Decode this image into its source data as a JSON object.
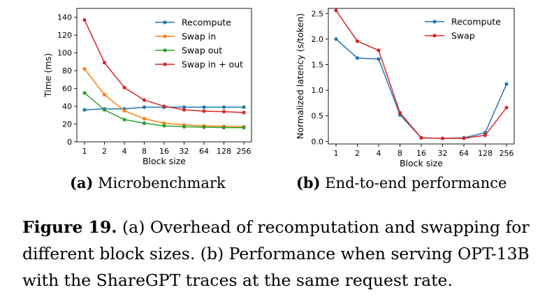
{
  "chart_data": [
    {
      "type": "line",
      "x": [
        "1",
        "2",
        "4",
        "8",
        "16",
        "32",
        "64",
        "128",
        "256"
      ],
      "xlabel": "Block size",
      "ylabel": "Time (ms)",
      "ylim": [
        0,
        150
      ],
      "yticks": [
        0,
        20,
        40,
        60,
        80,
        100,
        120,
        140
      ],
      "ytick_labels": [
        "0",
        "20",
        "40",
        "60",
        "80",
        "100",
        "120",
        "140"
      ],
      "legend_position": "top-right",
      "series": [
        {
          "name": "Recompute",
          "color": "#1f77b4",
          "values": [
            36,
            37,
            37,
            39,
            39,
            39,
            39,
            39,
            39
          ]
        },
        {
          "name": "Swap in",
          "color": "#ff7f0e",
          "values": [
            82,
            53,
            35,
            26,
            21,
            19,
            18,
            17.5,
            17
          ]
        },
        {
          "name": "Swap out",
          "color": "#2ca02c",
          "values": [
            55,
            36,
            25,
            21,
            18,
            17,
            16.5,
            16,
            16
          ]
        },
        {
          "name": "Swap in + out",
          "color": "#d62728",
          "values": [
            137,
            89,
            61,
            47,
            40,
            36,
            34.5,
            34,
            33
          ]
        }
      ]
    },
    {
      "type": "line",
      "x": [
        "1",
        "2",
        "4",
        "8",
        "16",
        "32",
        "64",
        "128",
        "256"
      ],
      "xlabel": "Block size",
      "ylabel": "Normalized latency (s/token)",
      "ylim": [
        -0.05,
        2.6
      ],
      "yticks": [
        0.0,
        0.5,
        1.0,
        1.5,
        2.0,
        2.5
      ],
      "ytick_labels": [
        "0.0",
        "0.5",
        "1.0",
        "1.5",
        "2.0",
        "2.5"
      ],
      "legend_position": "top-right",
      "series": [
        {
          "name": "Recompute",
          "color": "#1f77b4",
          "values": [
            2.0,
            1.63,
            1.61,
            0.52,
            0.07,
            0.06,
            0.07,
            0.17,
            1.12
          ]
        },
        {
          "name": "Swap",
          "color": "#d62728",
          "values": [
            2.56,
            1.96,
            1.78,
            0.56,
            0.07,
            0.06,
            0.06,
            0.12,
            0.66
          ]
        }
      ]
    }
  ],
  "subcaptions": {
    "a_tag": "(a)",
    "a_text": "Microbenchmark",
    "b_tag": "(b)",
    "b_text": "End-to-end performance"
  },
  "caption": {
    "label": "Figure 19.",
    "text": "(a) Overhead of recomputation and swapping for different block sizes. (b) Performance when serving OPT-13B with the ShareGPT traces at the same request rate."
  }
}
